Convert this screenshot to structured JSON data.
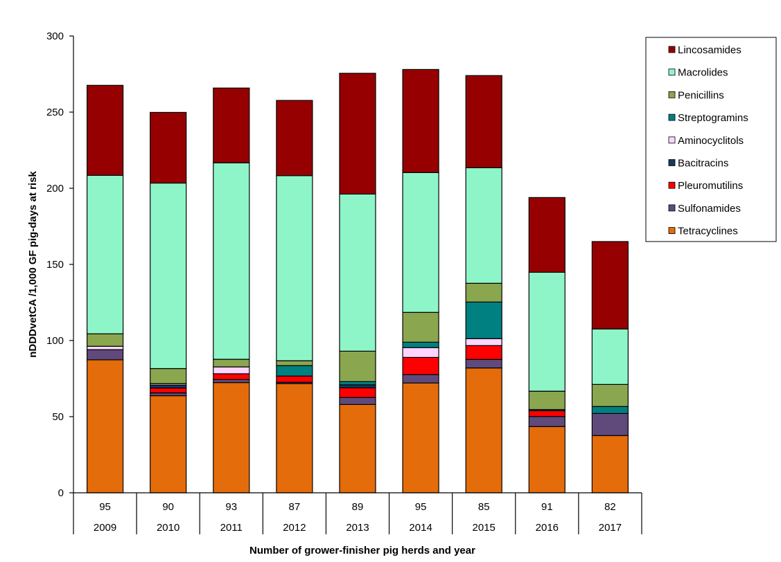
{
  "chart_data": {
    "type": "bar",
    "stacked": true,
    "title": "",
    "xlabel": "Number of grower-finisher pig herds and year",
    "ylabel": "nDDDvetCA /1,000 GF pig-days at risk",
    "ylim": [
      0,
      300
    ],
    "yticks": [
      0,
      50,
      100,
      150,
      200,
      250,
      300
    ],
    "grid": false,
    "legend_position": "top-right",
    "categories": [
      "2009",
      "2010",
      "2011",
      "2012",
      "2013",
      "2014",
      "2015",
      "2016",
      "2017"
    ],
    "herd_counts": [
      "95",
      "90",
      "93",
      "87",
      "89",
      "95",
      "85",
      "91",
      "82"
    ],
    "series": [
      {
        "name": "Tetracyclines",
        "color": "#E46C0A",
        "values": [
          87.3,
          63.8,
          72.4,
          71.7,
          58.0,
          72.1,
          82.0,
          43.5,
          37.6
        ]
      },
      {
        "name": "Sulfonamides",
        "color": "#604A7B",
        "values": [
          6.7,
          1.8,
          2.0,
          0.9,
          4.6,
          5.5,
          5.6,
          6.6,
          14.5
        ]
      },
      {
        "name": "Pleuromutilins",
        "color": "#FF0000",
        "values": [
          0,
          3.2,
          3.8,
          4.1,
          6.3,
          11.3,
          9.1,
          3.8,
          0
        ]
      },
      {
        "name": "Bacitracins",
        "color": "#17375E",
        "values": [
          0,
          2.0,
          0,
          0,
          2.0,
          0,
          0,
          0,
          0
        ]
      },
      {
        "name": "Aminocyclitols",
        "color": "#FFD5FF",
        "values": [
          2.2,
          0.9,
          4.5,
          0,
          0,
          6.4,
          4.5,
          0,
          0
        ]
      },
      {
        "name": "Streptogramins",
        "color": "#008080",
        "values": [
          0,
          0,
          0,
          6.8,
          2.1,
          3.6,
          24.1,
          0.8,
          4.6
        ]
      },
      {
        "name": "Penicillins",
        "color": "#8AA64E",
        "values": [
          8.2,
          9.9,
          5.0,
          3.2,
          20.0,
          19.6,
          12.3,
          12.0,
          14.5
        ]
      },
      {
        "name": "Macrolides",
        "color": "#8EF5C9",
        "values": [
          104.1,
          121.8,
          129.0,
          121.6,
          103.2,
          91.8,
          75.9,
          78.1,
          36.4
        ]
      },
      {
        "name": "Lincosamides",
        "color": "#970000",
        "values": [
          59.1,
          46.4,
          49.1,
          49.4,
          79.3,
          67.7,
          60.5,
          49.1,
          57.4
        ]
      }
    ],
    "legend_order": [
      "Lincosamides",
      "Macrolides",
      "Penicillins",
      "Streptogramins",
      "Aminocyclitols",
      "Bacitracins",
      "Pleuromutilins",
      "Sulfonamides",
      "Tetracyclines"
    ]
  }
}
